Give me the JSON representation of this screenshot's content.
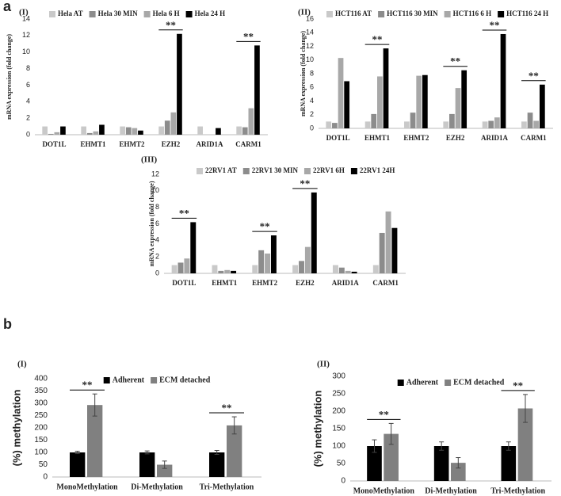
{
  "section_labels": [
    "a",
    "b"
  ],
  "chart_data": [
    {
      "type": "bar",
      "panel_label": "(I)",
      "y_label": "mRNA expression (fold change)",
      "categories": [
        "DOT1L",
        "EHMT1",
        "EHMT2",
        "EZH2",
        "ARID1A",
        "CARM1"
      ],
      "series": [
        {
          "name": "Hela AT",
          "color": "#c9c9c9",
          "values": [
            1,
            1,
            1,
            1,
            1,
            1
          ]
        },
        {
          "name": "Hela 30 MIN",
          "color": "#8c8c8c",
          "values": [
            0.1,
            0.2,
            0.9,
            1.7,
            0,
            0.9
          ]
        },
        {
          "name": "Hela 6 H",
          "color": "#a8a8a8",
          "values": [
            0.3,
            0.4,
            0.8,
            2.7,
            0,
            3.2
          ]
        },
        {
          "name": "Hela 24 H",
          "color": "#000000",
          "values": [
            1.0,
            1.2,
            0.5,
            12.2,
            0.8,
            10.8
          ]
        }
      ],
      "annotations": [
        {
          "text": "**",
          "category": "EZH2"
        },
        {
          "text": "**",
          "category": "CARM1"
        }
      ],
      "ylim": [
        0,
        14
      ],
      "yticks": [
        0,
        2,
        4,
        6,
        8,
        10,
        12,
        14
      ],
      "grid": false
    },
    {
      "type": "bar",
      "panel_label": "(II)",
      "y_label": "mRNA expression (fold change)",
      "categories": [
        "DOT1L",
        "EHMT1",
        "EHMT2",
        "EZH2",
        "ARID1A",
        "CARM1"
      ],
      "series": [
        {
          "name": "HCT116 AT",
          "color": "#c9c9c9",
          "values": [
            1,
            1,
            1,
            1,
            1,
            1
          ]
        },
        {
          "name": "HCT116 30 MIN",
          "color": "#8c8c8c",
          "values": [
            0.8,
            2.1,
            2.3,
            2.1,
            1.1,
            2.3
          ]
        },
        {
          "name": "HCT116 6 H",
          "color": "#a8a8a8",
          "values": [
            10.3,
            7.6,
            7.7,
            5.9,
            1.6,
            1.1
          ]
        },
        {
          "name": "HCT116 24 H",
          "color": "#000000",
          "values": [
            6.9,
            11.7,
            7.8,
            8.5,
            13.8,
            6.4
          ]
        }
      ],
      "annotations": [
        {
          "text": "**",
          "category": "EHMT1"
        },
        {
          "text": "**",
          "category": "EZH2"
        },
        {
          "text": "**",
          "category": "ARID1A"
        },
        {
          "text": "**",
          "category": "CARM1"
        }
      ],
      "ylim": [
        0,
        16
      ],
      "yticks": [
        0,
        2,
        4,
        6,
        8,
        10,
        12,
        14,
        16
      ],
      "grid": false
    },
    {
      "type": "bar",
      "panel_label": "(III)",
      "y_label": "mRNA expression (fold change)",
      "categories": [
        "DOT1L",
        "EHMT1",
        "EHMT2",
        "EZH2",
        "ARID1A",
        "CARM1"
      ],
      "series": [
        {
          "name": "22RV1 AT",
          "color": "#c9c9c9",
          "values": [
            1,
            1,
            1,
            1,
            1,
            1
          ]
        },
        {
          "name": "22RV1 30 MIN",
          "color": "#8c8c8c",
          "values": [
            1.3,
            0.3,
            2.8,
            1.5,
            0.7,
            4.9
          ]
        },
        {
          "name": "22RV1 6H",
          "color": "#a8a8a8",
          "values": [
            1.8,
            0.4,
            2.4,
            3.2,
            0.3,
            7.5
          ]
        },
        {
          "name": "22RV1 24H",
          "color": "#000000",
          "values": [
            6.2,
            0.3,
            4.6,
            9.8,
            0.2,
            5.5
          ]
        }
      ],
      "annotations": [
        {
          "text": "**",
          "category": "DOT1L"
        },
        {
          "text": "**",
          "category": "EHMT2"
        },
        {
          "text": "**",
          "category": "EZH2"
        }
      ],
      "ylim": [
        0,
        12
      ],
      "yticks": [
        0,
        2,
        4,
        6,
        8,
        10,
        12
      ],
      "grid": false
    },
    {
      "type": "bar",
      "panel_label": "(I)",
      "y_label": "(%) methylation",
      "categories": [
        "MonoMethylation",
        "Di-Methylation",
        "Tri-Methylation"
      ],
      "series": [
        {
          "name": "Adherent",
          "color": "#000000",
          "values": [
            100,
            100,
            100
          ],
          "errors": [
            5,
            6,
            8
          ]
        },
        {
          "name": "ECM detached",
          "color": "#808080",
          "values": [
            293,
            50,
            210
          ],
          "errors": [
            45,
            15,
            35
          ]
        }
      ],
      "annotations": [
        {
          "text": "**",
          "category": "MonoMethylation"
        },
        {
          "text": "**",
          "category": "Tri-Methylation"
        }
      ],
      "ylim": [
        0,
        400
      ],
      "yticks": [
        0,
        50,
        100,
        150,
        200,
        250,
        300,
        350,
        400
      ],
      "grid": false
    },
    {
      "type": "bar",
      "panel_label": "(II)",
      "y_label": "(%) methylation",
      "categories": [
        "MonoMethylation",
        "Di-Methylation",
        "Tri-Methylation"
      ],
      "series": [
        {
          "name": "Adherent",
          "color": "#000000",
          "values": [
            100,
            100,
            100
          ],
          "errors": [
            18,
            12,
            12
          ]
        },
        {
          "name": "ECM detached",
          "color": "#808080",
          "values": [
            135,
            52,
            208
          ],
          "errors": [
            30,
            15,
            40
          ]
        }
      ],
      "annotations": [
        {
          "text": "**",
          "category": "MonoMethylation"
        },
        {
          "text": "**",
          "category": "Tri-Methylation"
        }
      ],
      "ylim": [
        0,
        300
      ],
      "yticks": [
        0,
        50,
        100,
        150,
        200,
        250,
        300
      ],
      "grid": false
    }
  ]
}
